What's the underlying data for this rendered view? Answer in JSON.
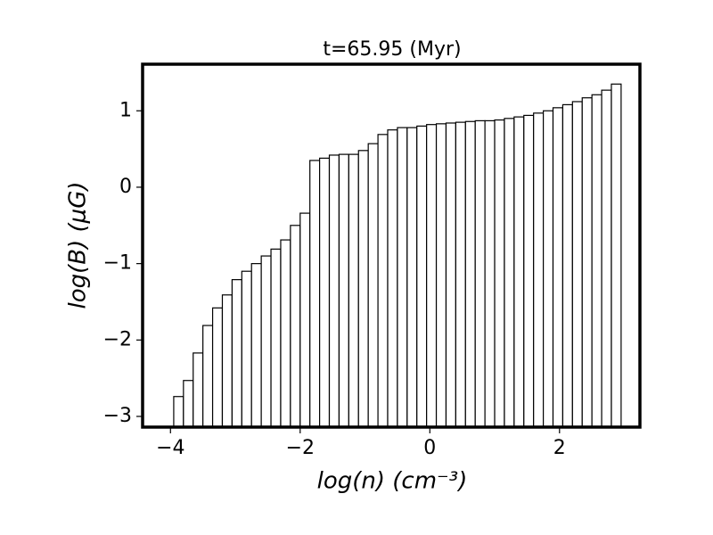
{
  "chart_data": {
    "type": "histogram",
    "title": "t=65.95 (Myr)",
    "x_label": "log(n) (cm⁻³)",
    "y_label": "log(B) (μG)",
    "bins": [
      -3.95,
      -3.8,
      -3.65,
      -3.5,
      -3.35,
      -3.2,
      -3.05,
      -2.9,
      -2.75,
      -2.6,
      -2.45,
      -2.3,
      -2.15,
      -2.0,
      -1.85,
      -1.7,
      -1.55,
      -1.4,
      -1.25,
      -1.1,
      -0.95,
      -0.8,
      -0.65,
      -0.5,
      -0.35,
      -0.2,
      -0.05,
      0.1,
      0.25,
      0.4,
      0.55,
      0.7,
      0.85,
      1.0,
      1.15,
      1.3,
      1.45,
      1.6,
      1.75,
      1.9,
      2.05,
      2.2,
      2.35,
      2.5,
      2.65,
      2.8,
      2.95
    ],
    "values": [
      -2.74,
      -2.53,
      -2.17,
      -1.81,
      -1.58,
      -1.41,
      -1.21,
      -1.1,
      -1.0,
      -0.9,
      -0.81,
      -0.69,
      -0.5,
      -0.34,
      0.35,
      0.38,
      0.42,
      0.43,
      0.43,
      0.48,
      0.57,
      0.69,
      0.75,
      0.78,
      0.78,
      0.8,
      0.82,
      0.83,
      0.84,
      0.85,
      0.86,
      0.87,
      0.87,
      0.88,
      0.9,
      0.92,
      0.94,
      0.97,
      1.0,
      1.04,
      1.08,
      1.12,
      1.17,
      1.21,
      1.27,
      1.35
    ],
    "color": "#ffffff",
    "edgecolor": "#000000",
    "xlim": [
      -4.43,
      3.24
    ],
    "ylim": [
      -3.14,
      1.61
    ],
    "xticks": [
      {
        "value": -4,
        "label": "−4"
      },
      {
        "value": -2,
        "label": "−2"
      },
      0,
      2
    ],
    "yticks": [
      {
        "value": -3,
        "label": "−3"
      },
      {
        "value": -2,
        "label": "−2"
      },
      {
        "value": -1,
        "label": "−1"
      },
      0,
      1
    ]
  }
}
